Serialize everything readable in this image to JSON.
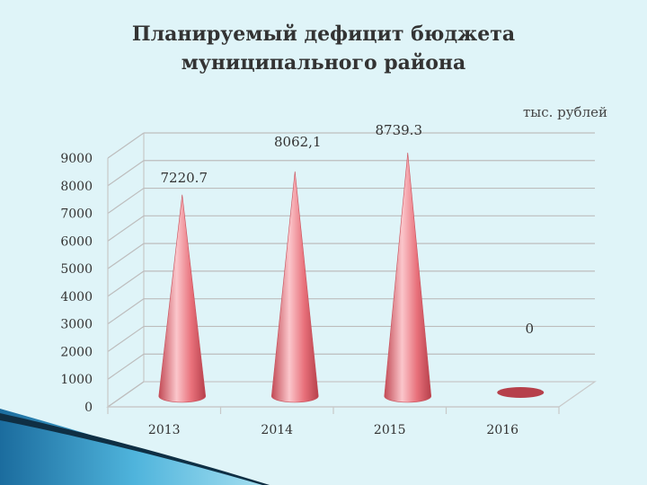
{
  "slide": {
    "title_line1": "Планируемый дефицит бюджета",
    "title_line2": "муниципального района"
  },
  "chart_data": {
    "type": "bar",
    "bar_shape": "cone",
    "unit_label": "тыс. рублей",
    "categories": [
      "2013",
      "2014",
      "2015",
      "2016"
    ],
    "values": [
      7220.7,
      8062.1,
      8739.3,
      0
    ],
    "data_labels": [
      "7220.7",
      "8062,1",
      "8739.3",
      "0"
    ],
    "yticks": [
      0,
      1000,
      2000,
      3000,
      4000,
      5000,
      6000,
      7000,
      8000,
      9000
    ],
    "ylim": [
      0,
      9000
    ],
    "grid": true,
    "bar_color": "#e8707a",
    "bar_highlight": "#fbc6cb",
    "bar_shadow": "#b6404b"
  }
}
